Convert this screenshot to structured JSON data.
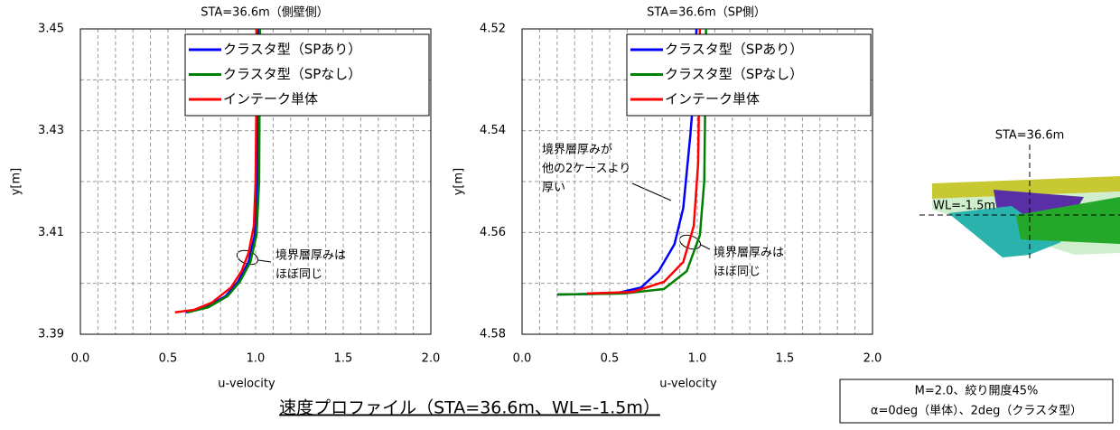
{
  "chart_data": [
    {
      "type": "line",
      "title": "STA=36.6m（側壁側）",
      "x_label": "u-velocity",
      "y_label": "y[m]",
      "xlim": [
        0,
        2
      ],
      "xticks": [
        {
          "value": 0,
          "label": "0.0"
        },
        0.5,
        {
          "value": 1,
          "label": "1.0"
        },
        1.5,
        {
          "value": 2,
          "label": "2.0"
        }
      ],
      "minor_xticks": [
        0.1,
        0.2,
        0.3,
        0.4,
        0.6,
        0.7,
        0.8,
        0.9,
        1.1,
        1.2,
        1.3,
        1.4,
        1.6,
        1.7,
        1.8,
        1.9
      ],
      "ylim": [
        3.39,
        3.45
      ],
      "yticks": [
        3.39,
        3.41,
        3.43,
        3.45
      ],
      "minor_yticks": [
        3.4,
        3.42,
        3.44
      ],
      "grid": true,
      "legend": "upper right",
      "series": [
        {
          "name": "クラスタ型（SPあり）",
          "color": "#0000ff",
          "x": [
            0.6,
            0.72,
            0.83,
            0.9,
            0.96,
            0.995,
            1.01,
            1.015
          ],
          "values": [
            3.3943,
            3.3953,
            3.3975,
            3.4003,
            3.4042,
            3.4095,
            3.42,
            3.45
          ]
        },
        {
          "name": "クラスタ型（SPなし）",
          "color": "#008000",
          "x": [
            0.61,
            0.73,
            0.84,
            0.91,
            0.97,
            1.005,
            1.02,
            1.025
          ],
          "values": [
            3.3943,
            3.3953,
            3.3975,
            3.4003,
            3.4042,
            3.4095,
            3.42,
            3.45
          ]
        },
        {
          "name": "インテーク単体",
          "color": "#ff0000",
          "x": [
            0.54,
            0.65,
            0.75,
            0.86,
            0.92,
            0.96,
            0.99,
            1.0,
            1.005,
            1.005
          ],
          "values": [
            3.3943,
            3.3948,
            3.3962,
            3.3992,
            3.4024,
            3.406,
            3.4113,
            3.42,
            3.438,
            3.45
          ]
        }
      ],
      "annotations": [
        {
          "lines": [
            "境界層厚みは",
            "ほぼ同じ"
          ]
        }
      ]
    },
    {
      "type": "line",
      "title": "STA=36.6m（SP側）",
      "x_label": "u-velocity",
      "y_label": "y[m]",
      "xlim": [
        0,
        2
      ],
      "xticks": [
        {
          "value": 0,
          "label": "0.0"
        },
        0.5,
        {
          "value": 1,
          "label": "1.0"
        },
        1.5,
        {
          "value": 2,
          "label": "2.0"
        }
      ],
      "minor_xticks": [
        0.1,
        0.2,
        0.3,
        0.4,
        0.6,
        0.7,
        0.8,
        0.9,
        1.1,
        1.2,
        1.3,
        1.4,
        1.6,
        1.7,
        1.8,
        1.9
      ],
      "ylim": [
        4.58,
        4.52
      ],
      "yticks": [
        4.52,
        4.54,
        4.56,
        4.58
      ],
      "minor_yticks": [
        4.53,
        4.55,
        4.57
      ],
      "grid": true,
      "legend": "upper right",
      "series": [
        {
          "name": "クラスタ型（SPあり）",
          "color": "#0000ff",
          "x": [
            0.2,
            0.53,
            0.68,
            0.78,
            0.87,
            0.92,
            0.96,
            0.985,
            0.995
          ],
          "values": [
            4.5722,
            4.572,
            4.5708,
            4.5676,
            4.5623,
            4.5552,
            4.541,
            4.5303,
            4.52
          ]
        },
        {
          "name": "クラスタ型（SPなし）",
          "color": "#008000",
          "x": [
            0.2,
            0.58,
            0.81,
            0.94,
            1.015,
            1.04,
            1.05
          ],
          "values": [
            4.5722,
            4.572,
            4.5711,
            4.5676,
            4.5605,
            4.5498,
            4.52
          ]
        },
        {
          "name": "インテーク単体",
          "color": "#ff0000",
          "x": [
            0.37,
            0.63,
            0.81,
            0.92,
            0.98,
            1.005,
            1.015
          ],
          "values": [
            4.572,
            4.5717,
            4.5697,
            4.5658,
            4.5587,
            4.5463,
            4.52
          ]
        }
      ],
      "annotations": [
        {
          "lines": [
            "境界層厚みが",
            "他の2ケースより",
            "厚い"
          ]
        },
        {
          "lines": [
            "境界層厚みは",
            "ほぼ同じ"
          ]
        }
      ]
    }
  ],
  "caption": "速度プロファイル（STA=36.6m、WL=-1.5m）",
  "conditions": [
    "M=2.0、絞り開度45%",
    "α=0deg（単体）、2deg（クラスタ型）"
  ],
  "image_labels": {
    "station": "STA=36.6m",
    "water_line": "WL=-1.5m"
  }
}
